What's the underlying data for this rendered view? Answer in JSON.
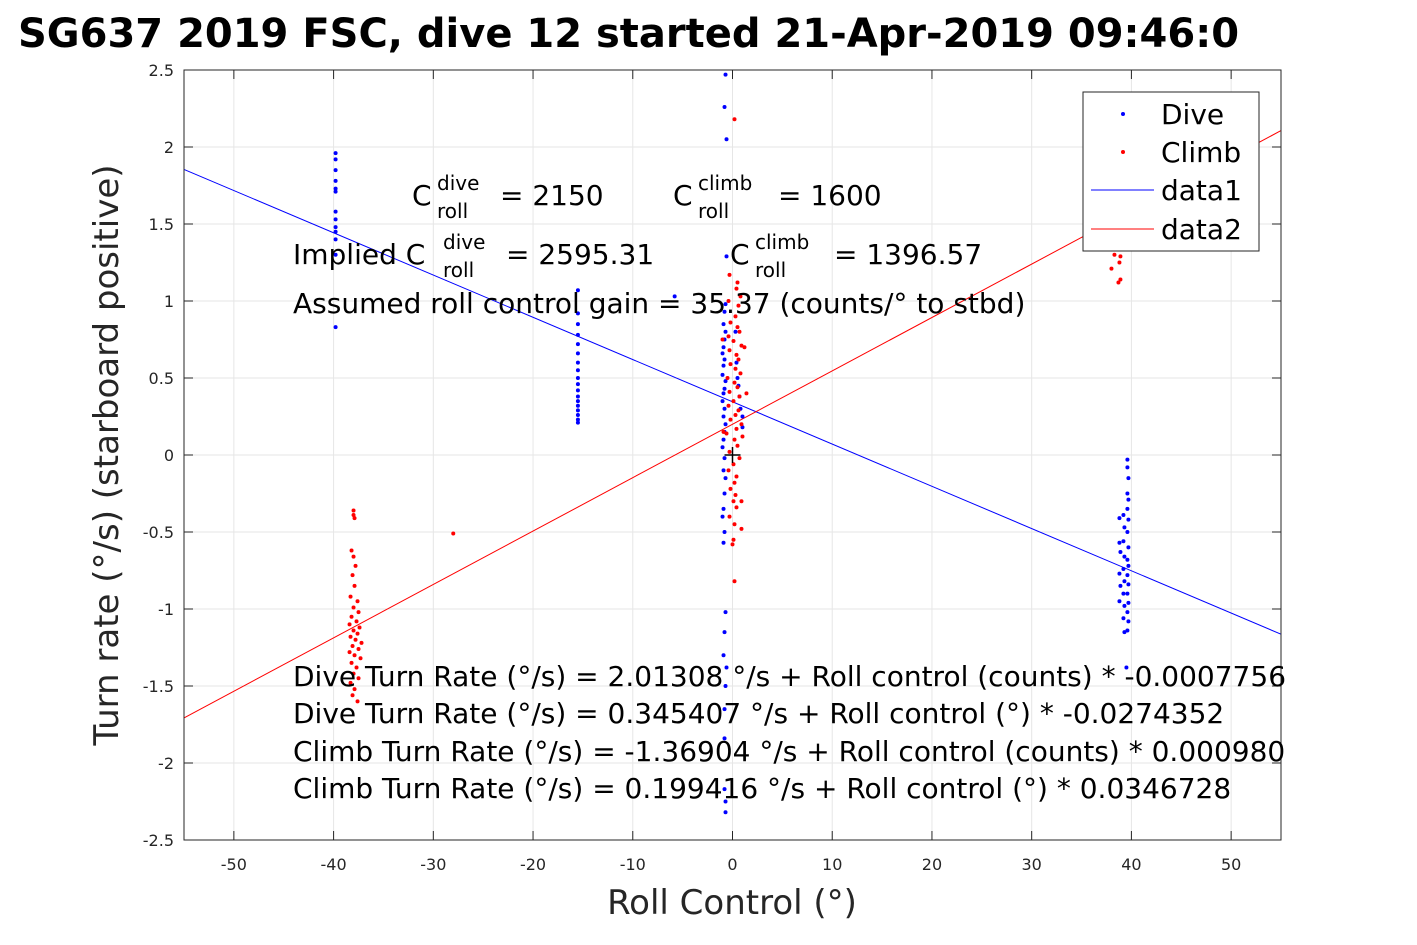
{
  "chart_data": {
    "type": "scatter",
    "title": "SG637 2019 FSC, dive 12 started 21-Apr-2019 09:46:0",
    "xlabel": "Roll Control (°)",
    "ylabel": "Turn rate (°/s) (starboard positive)",
    "xlim": [
      -55,
      55
    ],
    "ylim": [
      -2.5,
      2.5
    ],
    "xticks": [
      -50,
      -40,
      -30,
      -20,
      -10,
      0,
      10,
      20,
      30,
      40,
      50
    ],
    "yticks": [
      -2.5,
      -2,
      -1.5,
      -1,
      -0.5,
      0,
      0.5,
      1,
      1.5,
      2,
      2.5
    ],
    "xtick_labels": [
      "-50",
      "-40",
      "-30",
      "-20",
      "-10",
      "0",
      "10",
      "20",
      "30",
      "40",
      "50"
    ],
    "ytick_labels": [
      "-2.5",
      "-2",
      "-1.5",
      "-1",
      "-0.5",
      "0",
      "0.5",
      "1",
      "1.5",
      "2",
      "2.5"
    ],
    "grid": true,
    "legend_position": "top-right",
    "series": [
      {
        "name": "Dive",
        "kind": "points",
        "color": "#0000ff",
        "points": [
          [
            -39.8,
            1.96
          ],
          [
            -39.8,
            1.92
          ],
          [
            -39.8,
            1.85
          ],
          [
            -39.8,
            1.78
          ],
          [
            -39.8,
            1.73
          ],
          [
            -39.8,
            1.71
          ],
          [
            -39.8,
            1.58
          ],
          [
            -39.8,
            1.53
          ],
          [
            -39.8,
            1.48
          ],
          [
            -39.8,
            1.45
          ],
          [
            -39.8,
            1.4
          ],
          [
            -39.8,
            1.3
          ],
          [
            -39.8,
            0.83
          ],
          [
            -15.5,
            1.07
          ],
          [
            -15.5,
            0.92
          ],
          [
            -15.5,
            0.85
          ],
          [
            -15.5,
            0.78
          ],
          [
            -15.5,
            0.72
          ],
          [
            -15.5,
            0.66
          ],
          [
            -15.5,
            0.6
          ],
          [
            -15.5,
            0.55
          ],
          [
            -15.5,
            0.5
          ],
          [
            -15.5,
            0.46
          ],
          [
            -15.5,
            0.42
          ],
          [
            -15.5,
            0.38
          ],
          [
            -15.5,
            0.35
          ],
          [
            -15.5,
            0.32
          ],
          [
            -15.5,
            0.29
          ],
          [
            -15.5,
            0.26
          ],
          [
            -15.5,
            0.23
          ],
          [
            -15.5,
            0.21
          ],
          [
            -5.8,
            1.03
          ],
          [
            -0.7,
            2.47
          ],
          [
            -0.8,
            2.26
          ],
          [
            -0.6,
            2.05
          ],
          [
            -0.6,
            1.29
          ],
          [
            -0.7,
            0.98
          ],
          [
            -0.8,
            0.93
          ],
          [
            -0.9,
            0.85
          ],
          [
            -0.7,
            0.8
          ],
          [
            -0.8,
            0.75
          ],
          [
            -0.9,
            0.7
          ],
          [
            -1.0,
            0.66
          ],
          [
            -0.8,
            0.62
          ],
          [
            -0.9,
            0.58
          ],
          [
            -1.0,
            0.52
          ],
          [
            -0.7,
            0.48
          ],
          [
            -0.8,
            0.43
          ],
          [
            -0.9,
            0.4
          ],
          [
            -1.0,
            0.35
          ],
          [
            -0.8,
            0.3
          ],
          [
            -0.9,
            0.25
          ],
          [
            -0.7,
            0.2
          ],
          [
            -0.8,
            0.15
          ],
          [
            -0.9,
            0.1
          ],
          [
            -1.0,
            0.05
          ],
          [
            -0.8,
            -0.02
          ],
          [
            -0.9,
            -0.1
          ],
          [
            -0.7,
            -0.15
          ],
          [
            -0.8,
            -0.25
          ],
          [
            -0.9,
            -0.35
          ],
          [
            -1.0,
            -0.4
          ],
          [
            -0.8,
            -0.5
          ],
          [
            -0.9,
            -0.57
          ],
          [
            -0.7,
            -1.02
          ],
          [
            -0.8,
            -1.15
          ],
          [
            -0.9,
            -1.3
          ],
          [
            -0.6,
            -1.38
          ],
          [
            -0.7,
            -1.5
          ],
          [
            -0.8,
            -1.65
          ],
          [
            -0.8,
            -1.84
          ],
          [
            -0.8,
            -2.17
          ],
          [
            -0.7,
            -2.25
          ],
          [
            -0.7,
            -2.32
          ],
          [
            0.3,
            0.8
          ],
          [
            0.4,
            0.6
          ],
          [
            0.5,
            0.5
          ],
          [
            0.6,
            0.45
          ],
          [
            0.7,
            0.38
          ],
          [
            0.8,
            0.3
          ],
          [
            1.0,
            0.25
          ],
          [
            1.0,
            0.18
          ],
          [
            38.8,
            -0.41
          ],
          [
            38.8,
            -0.57
          ],
          [
            38.9,
            -0.63
          ],
          [
            38.8,
            -0.77
          ],
          [
            38.9,
            -0.85
          ],
          [
            38.8,
            -0.95
          ],
          [
            39.2,
            -0.39
          ],
          [
            39.3,
            -0.47
          ],
          [
            39.2,
            -0.56
          ],
          [
            39.3,
            -0.66
          ],
          [
            39.2,
            -0.74
          ],
          [
            39.3,
            -0.82
          ],
          [
            39.2,
            -0.9
          ],
          [
            39.3,
            -0.98
          ],
          [
            39.2,
            -1.06
          ],
          [
            39.3,
            -1.15
          ],
          [
            39.6,
            -0.03
          ],
          [
            39.6,
            -0.08
          ],
          [
            39.7,
            -0.15
          ],
          [
            39.6,
            -0.25
          ],
          [
            39.7,
            -0.29
          ],
          [
            39.6,
            -0.35
          ],
          [
            39.7,
            -0.42
          ],
          [
            39.6,
            -0.5
          ],
          [
            39.7,
            -0.6
          ],
          [
            39.6,
            -0.68
          ],
          [
            39.7,
            -0.72
          ],
          [
            39.6,
            -0.78
          ],
          [
            39.7,
            -0.84
          ],
          [
            39.6,
            -0.9
          ],
          [
            39.7,
            -0.96
          ],
          [
            39.6,
            -1.02
          ],
          [
            39.7,
            -1.08
          ],
          [
            39.6,
            -1.14
          ],
          [
            39.5,
            -1.38
          ]
        ]
      },
      {
        "name": "Climb",
        "kind": "points",
        "color": "#ff0000",
        "points": [
          [
            -38.0,
            -0.36
          ],
          [
            -38.0,
            -0.39
          ],
          [
            -37.9,
            -0.41
          ],
          [
            -38.2,
            -0.62
          ],
          [
            -38.0,
            -0.66
          ],
          [
            -37.8,
            -0.72
          ],
          [
            -38.1,
            -0.78
          ],
          [
            -37.9,
            -0.85
          ],
          [
            -38.3,
            -0.92
          ],
          [
            -37.6,
            -0.95
          ],
          [
            -38.0,
            -0.99
          ],
          [
            -37.5,
            -1.02
          ],
          [
            -38.2,
            -1.05
          ],
          [
            -37.7,
            -1.08
          ],
          [
            -38.4,
            -1.1
          ],
          [
            -37.4,
            -1.12
          ],
          [
            -38.0,
            -1.14
          ],
          [
            -37.6,
            -1.16
          ],
          [
            -38.3,
            -1.18
          ],
          [
            -37.8,
            -1.2
          ],
          [
            -37.2,
            -1.22
          ],
          [
            -38.1,
            -1.24
          ],
          [
            -37.5,
            -1.26
          ],
          [
            -38.4,
            -1.28
          ],
          [
            -37.9,
            -1.3
          ],
          [
            -37.3,
            -1.32
          ],
          [
            -38.2,
            -1.35
          ],
          [
            -37.7,
            -1.38
          ],
          [
            -38.0,
            -1.42
          ],
          [
            -37.5,
            -1.45
          ],
          [
            -38.3,
            -1.48
          ],
          [
            -37.9,
            -1.52
          ],
          [
            -38.1,
            -1.56
          ],
          [
            -37.6,
            -1.6
          ],
          [
            -28.0,
            -0.51
          ],
          [
            0.2,
            2.18
          ],
          [
            -0.3,
            1.17
          ],
          [
            0.5,
            1.12
          ],
          [
            0.4,
            1.08
          ],
          [
            0.8,
            1.03
          ],
          [
            -0.4,
            1.0
          ],
          [
            0.6,
            0.97
          ],
          [
            0.3,
            0.9
          ],
          [
            -0.2,
            0.86
          ],
          [
            0.5,
            0.83
          ],
          [
            0.7,
            0.8
          ],
          [
            -0.4,
            0.77
          ],
          [
            0.1,
            0.74
          ],
          [
            0.9,
            0.71
          ],
          [
            -0.3,
            0.68
          ],
          [
            0.4,
            0.65
          ],
          [
            0.6,
            0.62
          ],
          [
            -0.2,
            0.59
          ],
          [
            0.3,
            0.56
          ],
          [
            0.8,
            0.53
          ],
          [
            -0.5,
            0.5
          ],
          [
            0.2,
            0.47
          ],
          [
            0.5,
            0.44
          ],
          [
            -0.3,
            0.41
          ],
          [
            0.7,
            0.38
          ],
          [
            0.1,
            0.35
          ],
          [
            -0.4,
            0.32
          ],
          [
            0.6,
            0.29
          ],
          [
            0.3,
            0.26
          ],
          [
            -0.2,
            0.23
          ],
          [
            0.9,
            0.2
          ],
          [
            0.4,
            0.17
          ],
          [
            -0.6,
            0.14
          ],
          [
            0.2,
            0.1
          ],
          [
            0.5,
            0.06
          ],
          [
            -0.3,
            0.02
          ],
          [
            0.7,
            -0.02
          ],
          [
            0.1,
            -0.06
          ],
          [
            -0.4,
            -0.1
          ],
          [
            0.4,
            -0.14
          ],
          [
            0.2,
            -0.18
          ],
          [
            -0.2,
            -0.22
          ],
          [
            0.3,
            -0.26
          ],
          [
            0.1,
            -0.3
          ],
          [
            0.4,
            -0.34
          ],
          [
            -0.3,
            -0.4
          ],
          [
            0.2,
            -0.45
          ],
          [
            0.1,
            -0.55
          ],
          [
            0.0,
            -0.58
          ],
          [
            0.2,
            -0.82
          ],
          [
            1.2,
            0.7
          ],
          [
            1.4,
            0.4
          ],
          [
            1.0,
            0.12
          ],
          [
            0.9,
            -0.3
          ],
          [
            0.9,
            -0.48
          ],
          [
            -1.0,
            0.75
          ],
          [
            -0.9,
            0.15
          ],
          [
            38.3,
            1.3
          ],
          [
            38.9,
            1.29
          ],
          [
            38.8,
            1.25
          ],
          [
            38.0,
            1.21
          ],
          [
            38.9,
            1.14
          ],
          [
            38.7,
            1.12
          ]
        ]
      },
      {
        "name": "data1",
        "kind": "line",
        "color": "#0000ff",
        "intercept": 0.345407,
        "slope": -0.0274352
      },
      {
        "name": "data2",
        "kind": "line",
        "color": "#ff0000",
        "intercept": 0.199416,
        "slope": 0.0346728
      }
    ],
    "reference_marker": {
      "symbol": "+",
      "x": 0,
      "y": 0,
      "color": "#000000"
    },
    "annotations": {
      "c_roll_dive": {
        "base": "C",
        "sup": "dive",
        "sub": "roll",
        "value": "= 2150"
      },
      "c_roll_climb": {
        "base": "C",
        "sup": "climb",
        "sub": "roll",
        "value": "= 1600"
      },
      "implied_prefix": "Implied C",
      "implied_dive": {
        "sup": "dive",
        "sub": "roll",
        "value": "= 2595.31"
      },
      "implied_climb": {
        "base": "C",
        "sup": "climb",
        "sub": "roll",
        "value": "= 1396.57"
      },
      "gain": "Assumed roll control gain = 35.37 (counts/° to stbd)",
      "fits": [
        "Dive Turn Rate (°/s) = 2.01308 °/s + Roll control (counts) * -0.0007756",
        "Dive Turn Rate (°/s) = 0.345407 °/s + Roll control (°) * -0.0274352",
        "Climb Turn Rate (°/s) = -1.36904 °/s + Roll control (counts) * 0.000980",
        "Climb Turn Rate (°/s) = 0.199416 °/s + Roll control (°) * 0.0346728"
      ]
    }
  }
}
